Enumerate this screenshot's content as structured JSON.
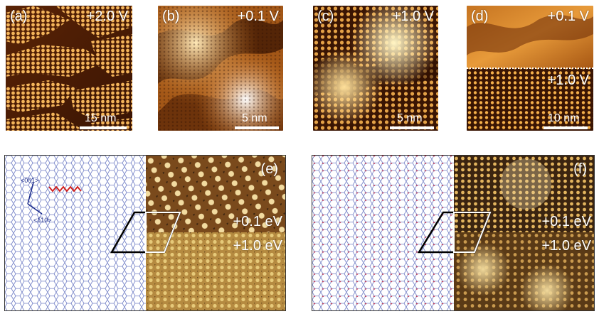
{
  "panels": {
    "a": {
      "label": "(a)",
      "bias": "+2.0 V",
      "scale": "15 nm"
    },
    "b": {
      "label": "(b)",
      "bias": "+0.1 V",
      "scale": "5 nm"
    },
    "c": {
      "label": "(c)",
      "bias": "+1.0 V",
      "scale": "5 nm"
    },
    "d": {
      "label": "(d)",
      "bias_top": "+0.1 V",
      "bias_bottom": "+1.0 V",
      "scale": "10 nm"
    },
    "e": {
      "label": "(e)",
      "energy_top": "+0.1 eV",
      "energy_bottom": "+1.0 eV",
      "axis_001": "<001>",
      "axis_110": "<1̅10>"
    },
    "f": {
      "label": "(f)",
      "energy_top": "+0.1 eV",
      "energy_bottom": "+1.0 eV"
    }
  },
  "colors": {
    "stm_dark": "#2a0d02",
    "stm_mid": "#b86a1c",
    "stm_bright": "#fff2c8",
    "sim_dark": "#3b2410",
    "sim_bright": "#f0d89a",
    "lattice_blue": "#5a6ab8",
    "lattice_red": "#c4304a",
    "outline_black": "#000000",
    "outline_white": "#ffffff"
  }
}
